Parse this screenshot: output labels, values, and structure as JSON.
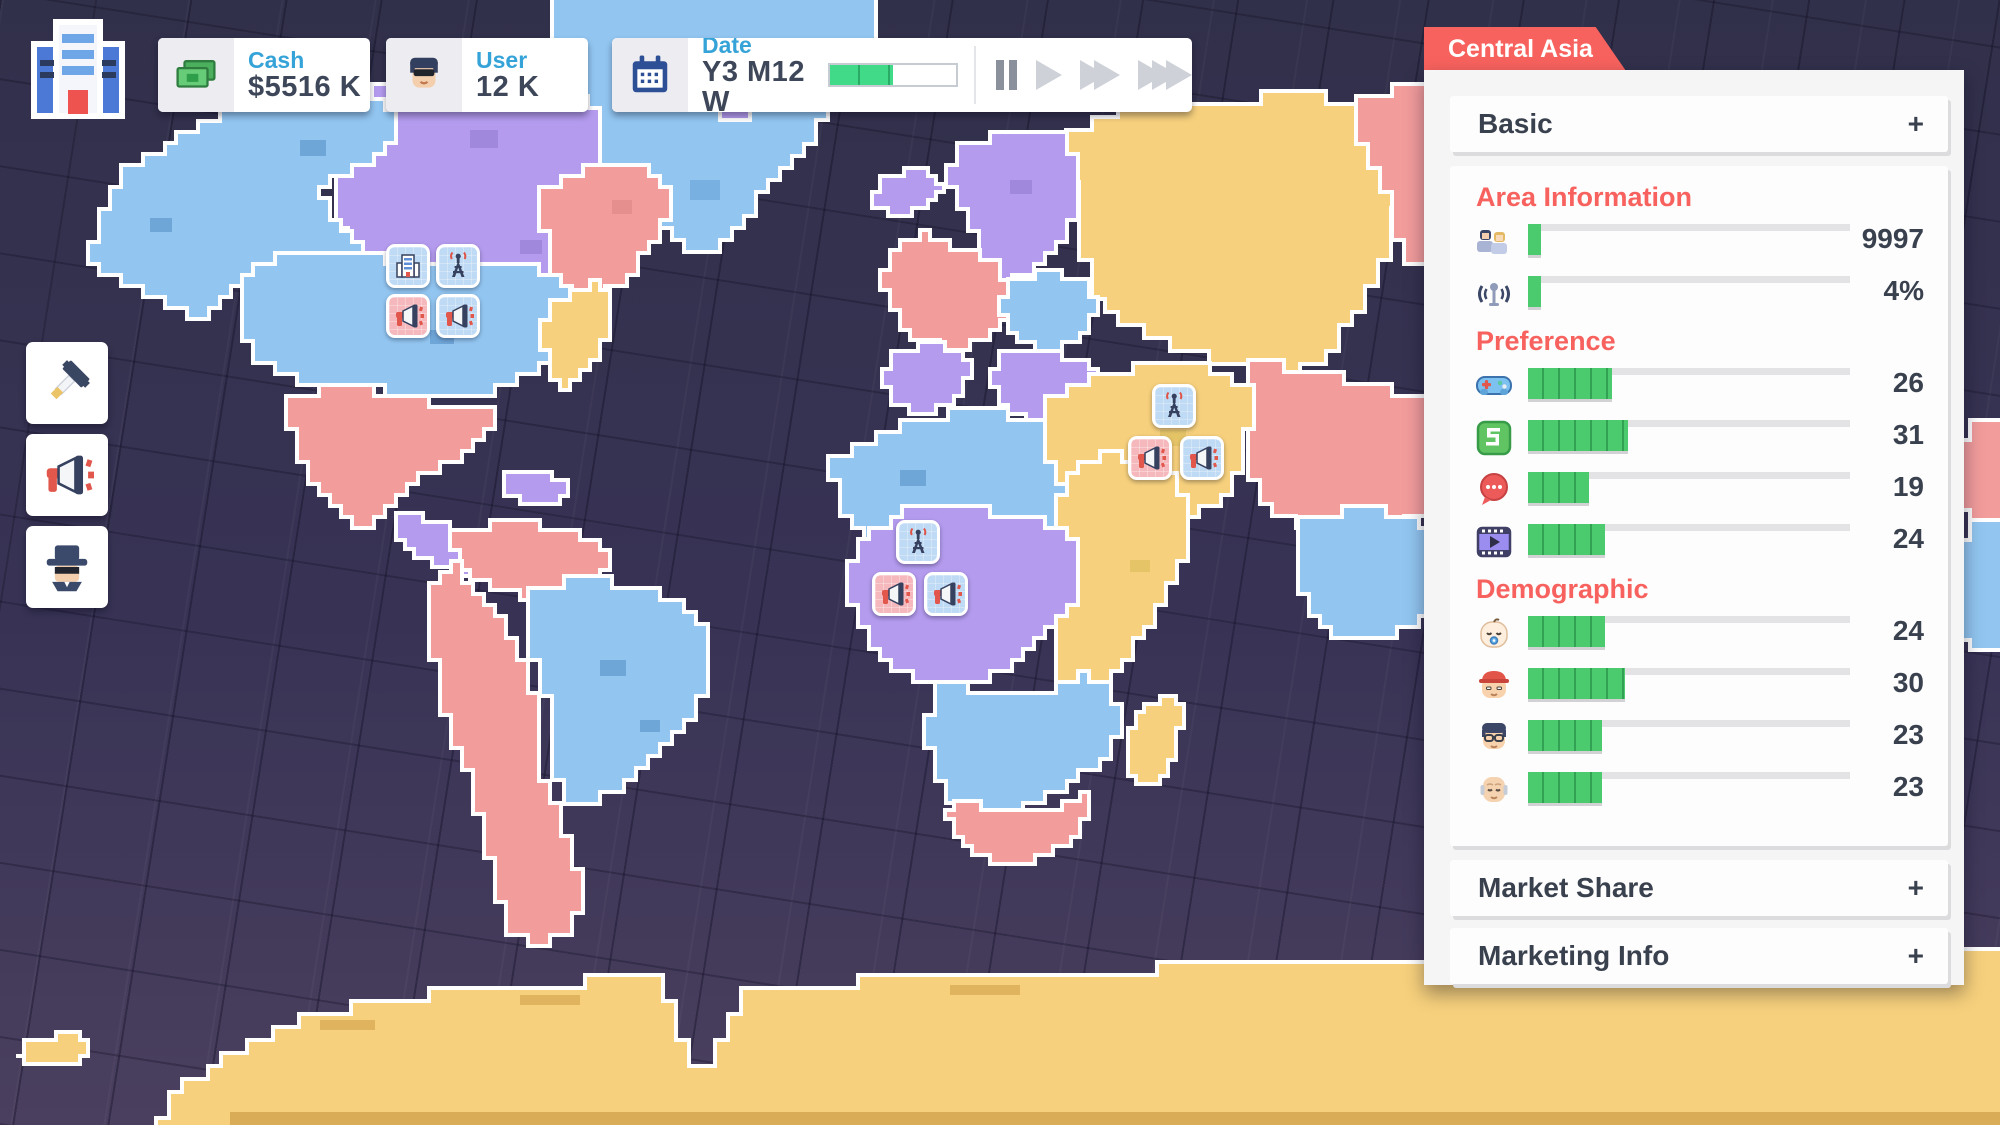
{
  "hud": {
    "cash": {
      "label": "Cash",
      "value": "$5516 K",
      "icon": "cash-bills-icon"
    },
    "user": {
      "label": "User",
      "value": "12 K",
      "icon": "user-avatar-icon"
    },
    "date": {
      "label": "Date",
      "value": "Y3 M12 W",
      "progress": "50%",
      "icon": "calendar-icon"
    },
    "speed": {
      "buttons": [
        "pause",
        "play",
        "fast-forward",
        "fastest"
      ],
      "active": "pause"
    }
  },
  "toolbar": {
    "hq_icon": "headquarters-building-icon",
    "buttons": [
      {
        "name": "build",
        "icon": "hammer-icon"
      },
      {
        "name": "marketing",
        "icon": "megaphone-icon"
      },
      {
        "name": "agent",
        "icon": "spy-icon"
      }
    ]
  },
  "map": {
    "marker_groups": [
      {
        "area": "north-america",
        "tiles": [
          "building",
          "antenna",
          "megaphone",
          "megaphone"
        ]
      },
      {
        "area": "middle-east",
        "tiles": [
          "antenna",
          "megaphone",
          "megaphone"
        ]
      },
      {
        "area": "central-africa",
        "tiles": [
          "antenna",
          "megaphone",
          "megaphone"
        ]
      }
    ],
    "land_colors": {
      "blue": "#92c6f1",
      "purple": "#b49bee",
      "pink": "#f29c9c",
      "yellow": "#f6d07c"
    }
  },
  "panel": {
    "title": "Central Asia",
    "basic": {
      "label": "Basic",
      "expand": "+"
    },
    "area": {
      "title": "Area Information",
      "rows": [
        {
          "icon": "population-icon",
          "value": "9997",
          "fill": "4%"
        },
        {
          "icon": "coverage-antenna-icon",
          "value": "4%",
          "fill": "4%"
        }
      ]
    },
    "preference": {
      "title": "Preference",
      "rows": [
        {
          "icon": "game-controller-icon",
          "value": "26",
          "fill": "26%"
        },
        {
          "icon": "app-five-icon",
          "value": "31",
          "fill": "31%"
        },
        {
          "icon": "chat-bubble-icon",
          "value": "19",
          "fill": "19%"
        },
        {
          "icon": "video-film-icon",
          "value": "24",
          "fill": "24%"
        }
      ]
    },
    "demographic": {
      "title": "Demographic",
      "rows": [
        {
          "icon": "baby-icon",
          "value": "24",
          "fill": "24%"
        },
        {
          "icon": "kid-icon",
          "value": "30",
          "fill": "30%"
        },
        {
          "icon": "adult-icon",
          "value": "23",
          "fill": "23%"
        },
        {
          "icon": "senior-icon",
          "value": "23",
          "fill": "23%"
        }
      ]
    },
    "market_share": {
      "label": "Market Share",
      "expand": "+"
    },
    "marketing_info": {
      "label": "Marketing Info",
      "expand": "+"
    }
  },
  "colors": {
    "accent_red": "#f8625e",
    "bar_green": "#4ccb6e",
    "label_blue": "#35a3d8",
    "text_dark": "#3a414e"
  }
}
